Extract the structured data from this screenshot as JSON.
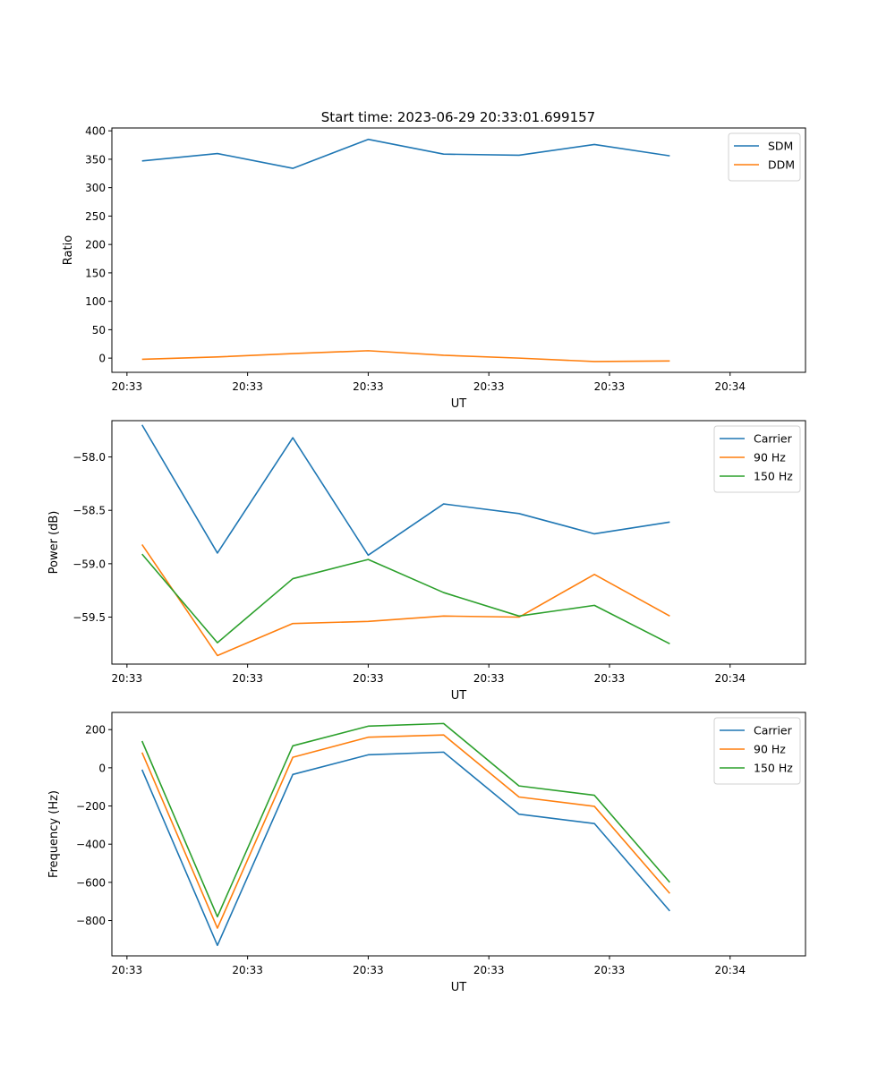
{
  "figure_title": "Start time: 2023-06-29 20:33:01.699157",
  "chart_data": [
    {
      "type": "line",
      "x": [
        1,
        2,
        3,
        4,
        5,
        6,
        7,
        8
      ],
      "xlabel": "UT",
      "xticks": [
        0.8,
        2.4,
        4.0,
        5.6,
        7.2,
        8.8
      ],
      "xtick_labels": [
        "20:33",
        "20:33",
        "20:33",
        "20:33",
        "20:33",
        "20:34"
      ],
      "xlim": [
        0.6,
        9.8
      ],
      "ylabel": "Ratio",
      "ylim": [
        -25,
        405
      ],
      "yticks": [
        0,
        50,
        100,
        150,
        200,
        250,
        300,
        350,
        400
      ],
      "ytick_labels": [
        "0",
        "50",
        "100",
        "150",
        "200",
        "250",
        "300",
        "350",
        "400"
      ],
      "legend": "upper right",
      "series": [
        {
          "name": "SDM",
          "color": "#1f77b4",
          "values": [
            347,
            360,
            334,
            385,
            359,
            357,
            376,
            356
          ]
        },
        {
          "name": "DDM",
          "color": "#ff7f0e",
          "values": [
            -2,
            2,
            8,
            13,
            5,
            0,
            -6,
            -5
          ]
        }
      ]
    },
    {
      "type": "line",
      "x": [
        1,
        2,
        3,
        4,
        5,
        6,
        7,
        8
      ],
      "xlabel": "UT",
      "xticks": [
        0.8,
        2.4,
        4.0,
        5.6,
        7.2,
        8.8
      ],
      "xtick_labels": [
        "20:33",
        "20:33",
        "20:33",
        "20:33",
        "20:33",
        "20:34"
      ],
      "xlim": [
        0.6,
        9.8
      ],
      "ylabel": "Power (dB)",
      "ylim": [
        -59.94,
        -57.66
      ],
      "yticks": [
        -58.0,
        -58.5,
        -59.0,
        -59.5
      ],
      "ytick_labels": [
        "−58.0",
        "−58.5",
        "−59.0",
        "−59.5"
      ],
      "legend": "upper right",
      "series": [
        {
          "name": "Carrier",
          "color": "#1f77b4",
          "values": [
            -57.7,
            -58.9,
            -57.82,
            -58.92,
            -58.44,
            -58.53,
            -58.72,
            -58.61
          ]
        },
        {
          "name": "90 Hz",
          "color": "#ff7f0e",
          "values": [
            -58.82,
            -59.86,
            -59.56,
            -59.54,
            -59.49,
            -59.5,
            -59.1,
            -59.49
          ]
        },
        {
          "name": "150 Hz",
          "color": "#2ca02c",
          "values": [
            -58.91,
            -59.74,
            -59.14,
            -58.96,
            -59.27,
            -59.49,
            -59.39,
            -59.75
          ]
        }
      ]
    },
    {
      "type": "line",
      "x": [
        1,
        2,
        3,
        4,
        5,
        6,
        7,
        8
      ],
      "xlabel": "UT",
      "xticks": [
        0.8,
        2.4,
        4.0,
        5.6,
        7.2,
        8.8
      ],
      "xtick_labels": [
        "20:33",
        "20:33",
        "20:33",
        "20:33",
        "20:33",
        "20:34"
      ],
      "xlim": [
        0.6,
        9.8
      ],
      "ylabel": "Frequency (Hz)",
      "ylim": [
        -985,
        290
      ],
      "yticks": [
        200,
        0,
        -200,
        -400,
        -600,
        -800
      ],
      "ytick_labels": [
        "200",
        "0",
        "−200",
        "−400",
        "−600",
        "−800"
      ],
      "legend": "upper right",
      "series": [
        {
          "name": "Carrier",
          "color": "#1f77b4",
          "values": [
            -10,
            -930,
            -35,
            68,
            82,
            -243,
            -292,
            -750
          ]
        },
        {
          "name": "90 Hz",
          "color": "#ff7f0e",
          "values": [
            80,
            -840,
            55,
            160,
            172,
            -153,
            -202,
            -658
          ]
        },
        {
          "name": "150 Hz",
          "color": "#2ca02c",
          "values": [
            140,
            -780,
            115,
            218,
            232,
            -95,
            -144,
            -600
          ]
        }
      ]
    }
  ]
}
